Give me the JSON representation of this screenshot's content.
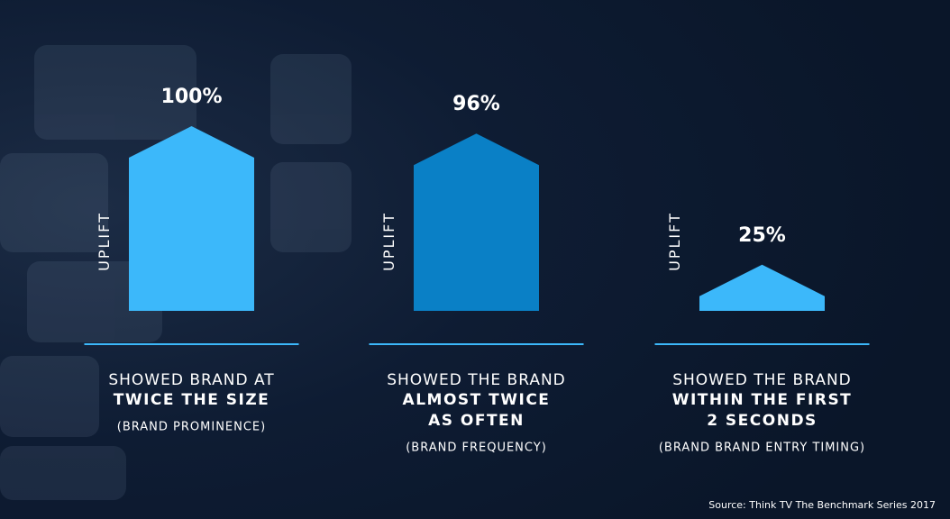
{
  "chart_data": {
    "type": "house-bar",
    "y_label": "UPLIFT",
    "values": [
      100,
      96,
      25
    ],
    "value_labels": [
      "100%",
      "96%",
      "25%"
    ],
    "colors": [
      "#3cb8fa",
      "#0a80c6",
      "#3cb8fa"
    ],
    "ylim": [
      0,
      100
    ],
    "leads": [
      [
        "SHOWED BRAND AT"
      ],
      [
        "SHOWED THE BRAND"
      ],
      [
        "SHOWED THE BRAND"
      ]
    ],
    "emphasis": [
      [
        "TWICE THE SIZE"
      ],
      [
        "ALMOST TWICE",
        "AS OFTEN"
      ],
      [
        "WITHIN THE FIRST",
        "2 SECONDS"
      ]
    ],
    "categories": [
      "(BRAND PROMINENCE)",
      "(BRAND FREQUENCY)",
      "(BRAND BRAND ENTRY TIMING)"
    ],
    "source": "Source: Think TV The Benchmark Series 2017"
  }
}
